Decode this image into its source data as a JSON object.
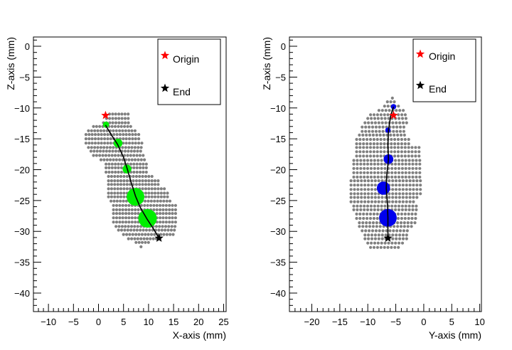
{
  "chart_data": [
    {
      "type": "scatter",
      "id": "xz",
      "xlabel": "X-axis (mm)",
      "ylabel": "Z-axis (mm)",
      "xlim": [
        -13,
        25.5
      ],
      "ylim": [
        -43,
        1.5
      ],
      "xticks": [
        -10,
        -5,
        0,
        5,
        10,
        15,
        20,
        25
      ],
      "yticks": [
        0,
        -5,
        -10,
        -15,
        -20,
        -25,
        -30,
        -35,
        -40
      ],
      "legend": {
        "position": "top-right",
        "items": [
          {
            "label": "Origin",
            "marker": "star",
            "color": "#ff0000"
          },
          {
            "label": "End",
            "marker": "star",
            "color": "#000000"
          }
        ]
      },
      "background_points": {
        "color": "#808080",
        "rows": [
          {
            "z": -11.0,
            "x_from": 2.2,
            "x_to": 6.2
          },
          {
            "z": -11.7,
            "x_from": 1.6,
            "x_to": 6.2
          },
          {
            "z": -12.4,
            "x_from": 1.0,
            "x_to": 6.2
          },
          {
            "z": -13.0,
            "x_from": -1.0,
            "x_to": 7.0
          },
          {
            "z": -13.7,
            "x_from": -2.0,
            "x_to": 7.6
          },
          {
            "z": -14.3,
            "x_from": -2.5,
            "x_to": 8.2
          },
          {
            "z": -15.0,
            "x_from": -2.5,
            "x_to": 8.6
          },
          {
            "z": -15.7,
            "x_from": -2.5,
            "x_to": 9.0
          },
          {
            "z": -16.4,
            "x_from": -2.0,
            "x_to": 9.0
          },
          {
            "z": -17.0,
            "x_from": -1.5,
            "x_to": 9.0
          },
          {
            "z": -17.7,
            "x_from": -1.0,
            "x_to": 9.0
          },
          {
            "z": -18.4,
            "x_from": 0.5,
            "x_to": 9.6
          },
          {
            "z": -19.1,
            "x_from": 1.5,
            "x_to": 10.0
          },
          {
            "z": -19.7,
            "x_from": 1.5,
            "x_to": 10.0
          },
          {
            "z": -20.4,
            "x_from": 1.5,
            "x_to": 10.0
          },
          {
            "z": -21.1,
            "x_from": 2.0,
            "x_to": 11.0
          },
          {
            "z": -21.8,
            "x_from": 2.0,
            "x_to": 12.0
          },
          {
            "z": -22.4,
            "x_from": 2.0,
            "x_to": 12.5
          },
          {
            "z": -23.1,
            "x_from": 2.0,
            "x_to": 13.5
          },
          {
            "z": -23.8,
            "x_from": 2.0,
            "x_to": 14.0
          },
          {
            "z": -24.4,
            "x_from": 2.0,
            "x_to": 14.0
          },
          {
            "z": -25.1,
            "x_from": 2.5,
            "x_to": 14.5
          },
          {
            "z": -25.8,
            "x_from": 3.0,
            "x_to": 15.5
          },
          {
            "z": -26.5,
            "x_from": 3.0,
            "x_to": 15.5
          },
          {
            "z": -27.1,
            "x_from": 3.0,
            "x_to": 15.5
          },
          {
            "z": -27.8,
            "x_from": 3.0,
            "x_to": 15.5
          },
          {
            "z": -28.5,
            "x_from": 3.0,
            "x_to": 15.5
          },
          {
            "z": -29.2,
            "x_from": 3.5,
            "x_to": 15.5
          },
          {
            "z": -29.8,
            "x_from": 4.0,
            "x_to": 15.5
          },
          {
            "z": -30.5,
            "x_from": 5.0,
            "x_to": 15.0
          },
          {
            "z": -31.2,
            "x_from": 6.0,
            "x_to": 12.5
          },
          {
            "z": -31.8,
            "x_from": 7.5,
            "x_to": 10.0
          },
          {
            "z": -32.5,
            "x_from": 8.5,
            "x_to": 8.6
          }
        ]
      },
      "track": [
        [
          1.4,
          -12.8
        ],
        [
          2.6,
          -14.4
        ],
        [
          3.8,
          -15.9
        ],
        [
          5.0,
          -18.0
        ],
        [
          5.8,
          -20.0
        ],
        [
          6.6,
          -22.3
        ],
        [
          7.4,
          -24.3
        ],
        [
          8.4,
          -26.2
        ],
        [
          9.7,
          -28.0
        ],
        [
          11.0,
          -29.6
        ],
        [
          12.1,
          -31.1
        ]
      ],
      "deposits": {
        "color": "#00ee00",
        "points": [
          {
            "x": 1.5,
            "y": -12.7,
            "size": 0.7
          },
          {
            "x": 3.9,
            "y": -15.7,
            "size": 1.0
          },
          {
            "x": 5.7,
            "y": -19.9,
            "size": 1.0
          },
          {
            "x": 7.4,
            "y": -24.4,
            "size": 2.0
          },
          {
            "x": 9.8,
            "y": -27.9,
            "size": 2.1
          }
        ]
      },
      "origin": {
        "x": 1.4,
        "y": -11.2
      },
      "end": {
        "x": 12.1,
        "y": -31.1
      }
    },
    {
      "type": "scatter",
      "id": "yz",
      "xlabel": "Y-axis (mm)",
      "ylabel": "Z-axis (mm)",
      "xlim": [
        -24,
        10.3
      ],
      "ylim": [
        -43,
        1.5
      ],
      "xticks": [
        -20,
        -15,
        -10,
        -5,
        0,
        5,
        10
      ],
      "yticks": [
        0,
        -5,
        -10,
        -15,
        -20,
        -25,
        -30,
        -35,
        -40
      ],
      "legend": {
        "position": "top-right",
        "items": [
          {
            "label": "Origin",
            "marker": "star",
            "color": "#ff0000"
          },
          {
            "label": "End",
            "marker": "star",
            "color": "#000000"
          }
        ]
      },
      "background_points": {
        "color": "#808080",
        "rows": [
          {
            "z": -8.4,
            "x_from": -5.6,
            "x_to": -5.4
          },
          {
            "z": -9.0,
            "x_from": -6.5,
            "x_to": -5.0
          },
          {
            "z": -9.7,
            "x_from": -7.0,
            "x_to": -4.5
          },
          {
            "z": -10.4,
            "x_from": -8.0,
            "x_to": -3.5
          },
          {
            "z": -11.1,
            "x_from": -9.5,
            "x_to": -3.0
          },
          {
            "z": -11.7,
            "x_from": -10.0,
            "x_to": -3.0
          },
          {
            "z": -12.4,
            "x_from": -10.5,
            "x_to": -3.0
          },
          {
            "z": -13.1,
            "x_from": -11.0,
            "x_to": -3.0
          },
          {
            "z": -13.8,
            "x_from": -11.0,
            "x_to": -3.0
          },
          {
            "z": -14.4,
            "x_from": -11.5,
            "x_to": -3.0
          },
          {
            "z": -15.1,
            "x_from": -12.0,
            "x_to": -2.5
          },
          {
            "z": -15.8,
            "x_from": -12.0,
            "x_to": -2.5
          },
          {
            "z": -16.4,
            "x_from": -12.0,
            "x_to": -0.5
          },
          {
            "z": -17.1,
            "x_from": -12.0,
            "x_to": -0.5
          },
          {
            "z": -17.8,
            "x_from": -12.0,
            "x_to": -0.5
          },
          {
            "z": -18.5,
            "x_from": -12.5,
            "x_to": -0.5
          },
          {
            "z": -19.1,
            "x_from": -12.5,
            "x_to": -0.5
          },
          {
            "z": -19.8,
            "x_from": -12.5,
            "x_to": -0.5
          },
          {
            "z": -20.5,
            "x_from": -12.5,
            "x_to": -0.5
          },
          {
            "z": -21.2,
            "x_from": -12.5,
            "x_to": -0.5
          },
          {
            "z": -21.8,
            "x_from": -13.0,
            "x_to": -0.5
          },
          {
            "z": -22.5,
            "x_from": -13.0,
            "x_to": -0.5
          },
          {
            "z": -23.2,
            "x_from": -13.0,
            "x_to": -0.5
          },
          {
            "z": -23.9,
            "x_from": -13.0,
            "x_to": -0.5
          },
          {
            "z": -24.5,
            "x_from": -13.0,
            "x_to": -1.0
          },
          {
            "z": -25.2,
            "x_from": -13.0,
            "x_to": -1.5
          },
          {
            "z": -25.9,
            "x_from": -12.5,
            "x_to": -1.0
          },
          {
            "z": -26.5,
            "x_from": -12.5,
            "x_to": -1.0
          },
          {
            "z": -27.2,
            "x_from": -12.0,
            "x_to": -1.0
          },
          {
            "z": -27.9,
            "x_from": -12.0,
            "x_to": -1.0
          },
          {
            "z": -28.6,
            "x_from": -11.5,
            "x_to": -1.0
          },
          {
            "z": -29.2,
            "x_from": -11.5,
            "x_to": -2.0
          },
          {
            "z": -29.9,
            "x_from": -11.0,
            "x_to": -2.5
          },
          {
            "z": -30.6,
            "x_from": -10.5,
            "x_to": -3.0
          },
          {
            "z": -31.2,
            "x_from": -10.5,
            "x_to": -3.0
          },
          {
            "z": -31.9,
            "x_from": -10.0,
            "x_to": -3.5
          },
          {
            "z": -32.6,
            "x_from": -9.5,
            "x_to": -4.0
          }
        ]
      },
      "track": [
        [
          -5.4,
          -9.8
        ],
        [
          -5.9,
          -11.2
        ],
        [
          -6.3,
          -13.6
        ],
        [
          -6.4,
          -16.0
        ],
        [
          -6.3,
          -18.3
        ],
        [
          -6.6,
          -20.8
        ],
        [
          -6.7,
          -23.0
        ],
        [
          -6.5,
          -25.5
        ],
        [
          -6.4,
          -27.8
        ],
        [
          -6.4,
          -29.6
        ],
        [
          -6.4,
          -31.1
        ]
      ],
      "deposits": {
        "color": "#0000ee",
        "points": [
          {
            "x": -5.4,
            "y": -9.8,
            "size": 0.6
          },
          {
            "x": -6.4,
            "y": -13.6,
            "size": 0.6
          },
          {
            "x": -6.3,
            "y": -18.3,
            "size": 1.1
          },
          {
            "x": -7.2,
            "y": -23.0,
            "size": 1.5
          },
          {
            "x": -6.4,
            "y": -27.8,
            "size": 2.0
          }
        ]
      },
      "origin": {
        "x": -5.4,
        "y": -11.2
      },
      "end": {
        "x": -6.4,
        "y": -31.1
      }
    }
  ]
}
